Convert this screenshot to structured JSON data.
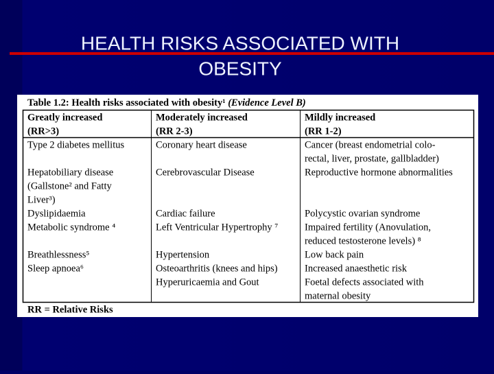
{
  "slide": {
    "title_lines": [
      "HEALTH RISKS ASSOCIATED WITH",
      "OBESITY"
    ],
    "table": {
      "caption": "Table 1.2: Health risks associated with obesity¹",
      "caption_note": "(Evidence Level B)",
      "header": [
        [
          "Greatly increased",
          "(RR>3)"
        ],
        [
          "Moderately increased",
          "(RR 2-3)"
        ],
        [
          "Mildly increased",
          "(RR 1-2)"
        ]
      ],
      "rows": [
        [
          [
            "Type 2 diabetes mellitus"
          ],
          [
            "Coronary heart disease"
          ],
          [
            "Cancer (breast endometrial colo-",
            "rectal, liver, prostate, gallbladder)"
          ]
        ],
        [
          [
            "Hepatobiliary disease",
            "(Gallstone² and Fatty",
            "Liver³)"
          ],
          [
            "Cerebrovascular Disease"
          ],
          [
            "Reproductive hormone abnormalities"
          ]
        ],
        [
          [
            "Dyslipidaemia",
            "Metabolic syndrome ⁴"
          ],
          [
            "Cardiac failure",
            "Left Ventricular Hypertrophy ⁷"
          ],
          [
            "Polycystic ovarian syndrome",
            "Impaired fertility (Anovulation,",
            "reduced testosterone levels) ⁸"
          ]
        ],
        [
          [
            "Breathlessness⁵",
            "Sleep apnoea⁶"
          ],
          [
            "Hypertension",
            "Osteoarthritis (knees and hips)",
            "Hyperuricaemia and Gout"
          ],
          [
            "Low back pain",
            "Increased anaesthetic risk",
            "Foetal defects associated with",
            "maternal obesity"
          ]
        ]
      ],
      "footnote": "RR = Relative Risks"
    }
  }
}
